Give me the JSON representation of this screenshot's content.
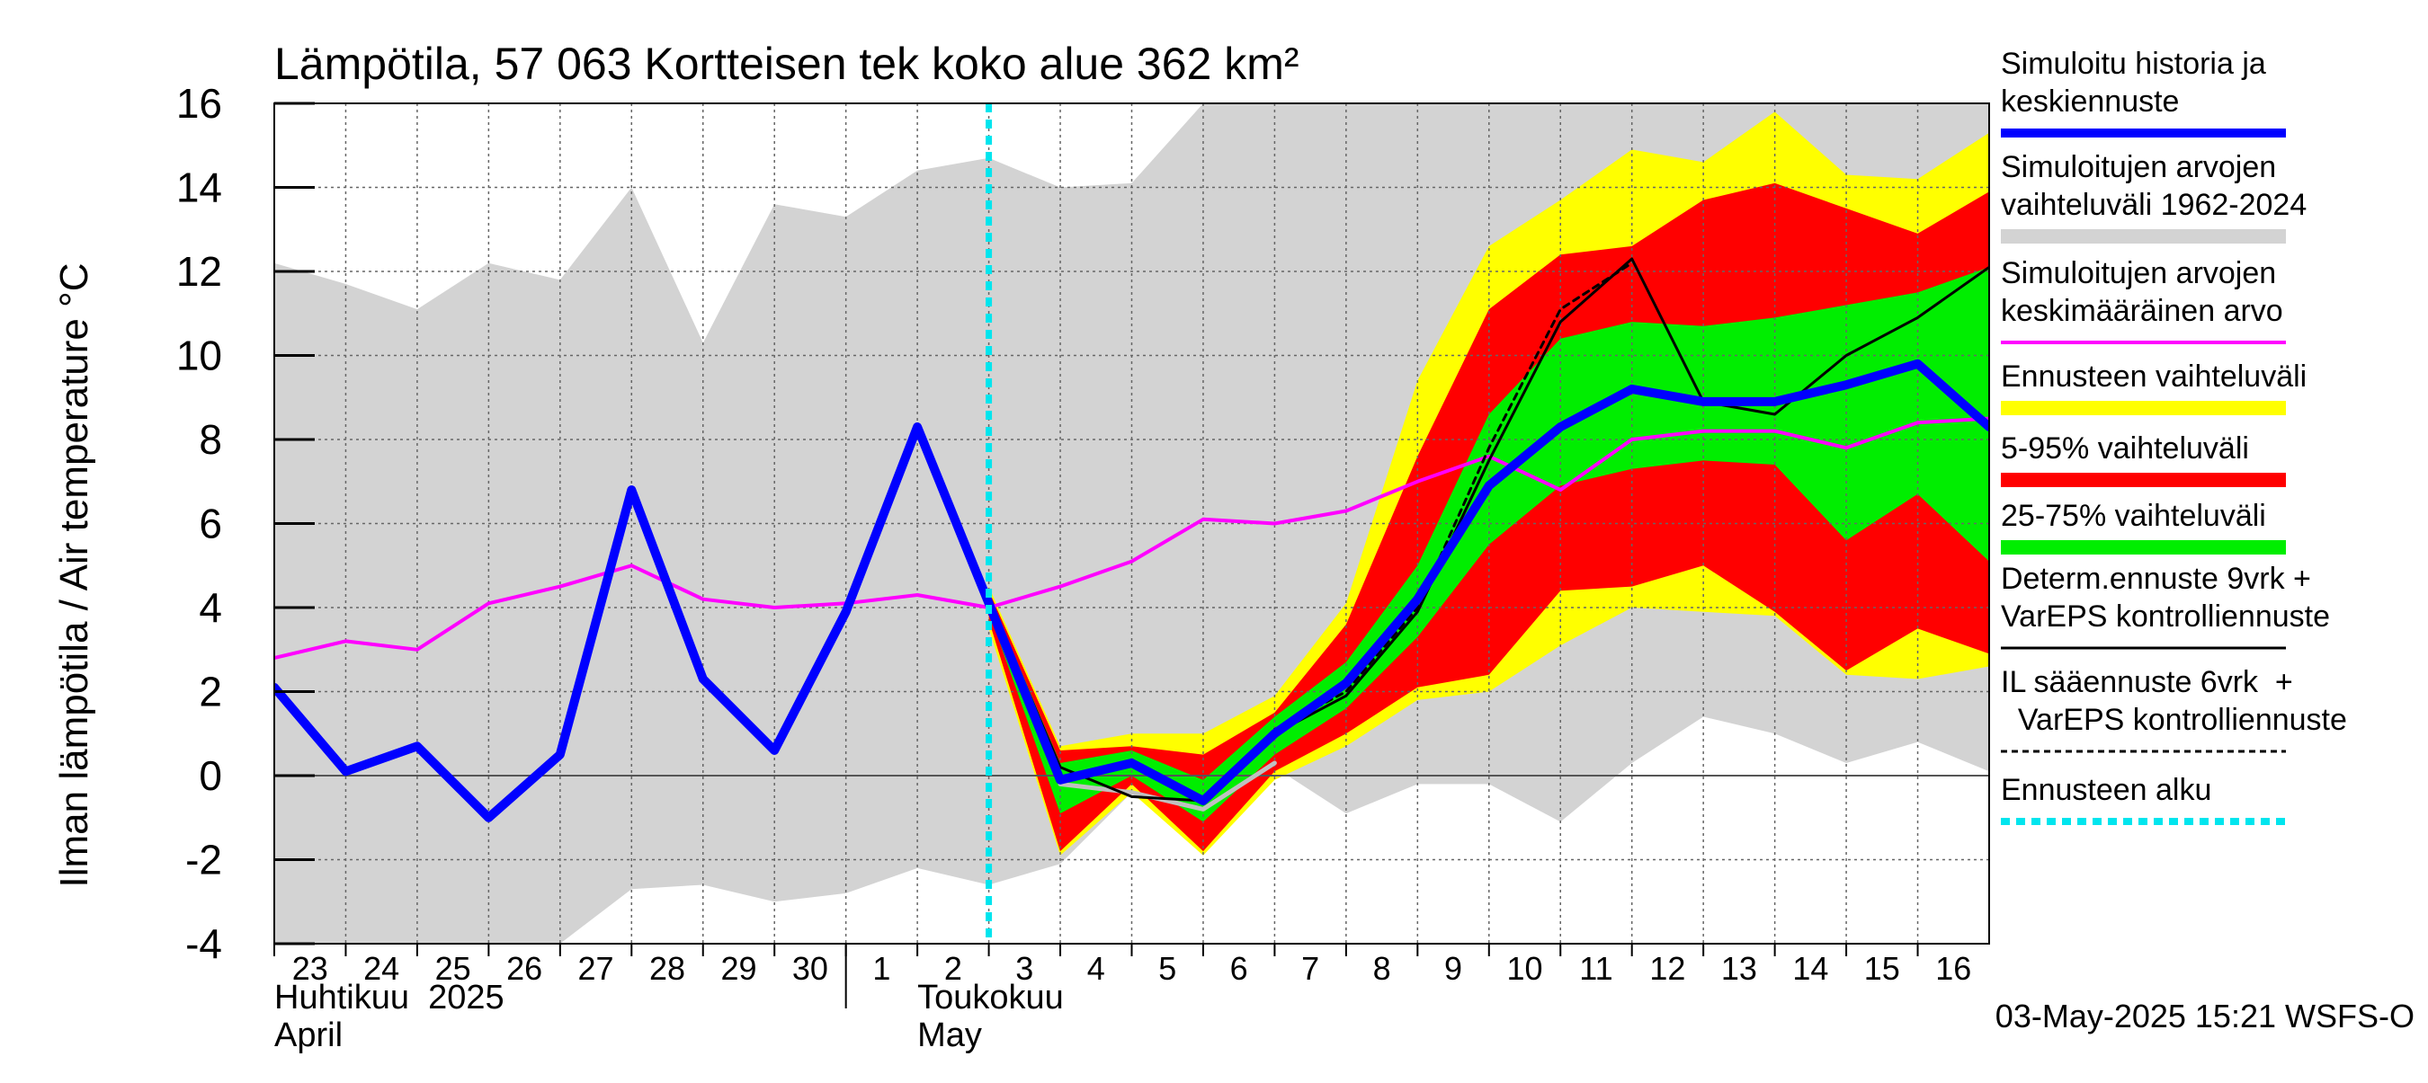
{
  "chart_data": {
    "type": "line",
    "title": "Lämpötila, 57 063 Kortteisen tek koko alue 362 km²",
    "ylabel": "Ilman lämpötila / Air temperature   °C",
    "ylim": [
      -4,
      16
    ],
    "yticks": [
      -4,
      -2,
      0,
      2,
      4,
      6,
      8,
      10,
      12,
      14,
      16
    ],
    "xlim": [
      0,
      24
    ],
    "x_tick_labels": [
      "23",
      "24",
      "25",
      "26",
      "27",
      "28",
      "29",
      "30",
      "1",
      "2",
      "3",
      "4",
      "5",
      "6",
      "7",
      "8",
      "9",
      "10",
      "11",
      "12",
      "13",
      "14",
      "15",
      "16"
    ],
    "month_labels": [
      {
        "fi": "Huhtikuu  2025",
        "en": "April"
      },
      {
        "fi": "Toukokuu",
        "en": "May"
      }
    ],
    "grid": true,
    "legend_placement": "right",
    "forecast_start_x": 10,
    "timestamp": "03-May-2025 15:21 WSFS-O",
    "series": [
      {
        "key": "range_all",
        "name": "Simuloitujen arvojen vaihteluväli 1962-2024",
        "color": "#d3d3d3",
        "x": [
          0,
          1,
          2,
          3,
          4,
          5,
          6,
          7,
          8,
          9,
          10,
          11,
          12,
          13,
          14,
          15,
          16,
          17,
          18,
          19,
          20,
          21,
          22,
          23,
          24
        ],
        "upper": [
          12.2,
          11.7,
          11.1,
          12.2,
          11.8,
          14.0,
          10.3,
          13.6,
          13.3,
          14.4,
          14.7,
          14.0,
          14.1,
          17,
          17,
          17,
          17,
          17,
          17,
          17,
          17,
          17,
          17,
          17,
          17
        ],
        "lower": [
          -4.5,
          -4.5,
          -4.5,
          -4.5,
          -4.1,
          -2.7,
          -2.6,
          -3.0,
          -2.8,
          -2.2,
          -2.6,
          -2.1,
          -0.4,
          -0.8,
          0.2,
          -0.9,
          -0.2,
          -0.2,
          -1.1,
          0.3,
          1.4,
          1.0,
          0.3,
          0.8,
          0.1
        ]
      },
      {
        "key": "range_forecast",
        "name": "Ennusteen vaihteluväli",
        "color": "#ffff00",
        "x": [
          10,
          11,
          12,
          13,
          14,
          15,
          16,
          17,
          18,
          19,
          20,
          21,
          22,
          23,
          24
        ],
        "upper": [
          4.5,
          0.7,
          1.0,
          1.0,
          1.9,
          4.1,
          9.4,
          12.6,
          13.7,
          14.9,
          14.6,
          15.8,
          14.3,
          14.2,
          15.3
        ],
        "lower": [
          3.5,
          -1.9,
          -0.4,
          -1.9,
          -0.1,
          0.7,
          1.8,
          2.0,
          3.1,
          4.0,
          3.9,
          3.8,
          2.4,
          2.3,
          2.6
        ]
      },
      {
        "key": "range_5_95",
        "name": "5-95% vaihteluväli",
        "color": "#ff0000",
        "x": [
          10,
          11,
          12,
          13,
          14,
          15,
          16,
          17,
          18,
          19,
          20,
          21,
          22,
          23,
          24
        ],
        "upper": [
          4.4,
          0.6,
          0.7,
          0.5,
          1.5,
          3.6,
          7.6,
          11.1,
          12.4,
          12.6,
          13.7,
          14.1,
          13.5,
          12.9,
          13.9
        ],
        "lower": [
          3.7,
          -1.8,
          -0.2,
          -1.8,
          0.1,
          1.0,
          2.1,
          2.4,
          4.4,
          4.5,
          5.0,
          3.9,
          2.5,
          3.5,
          2.9
        ]
      },
      {
        "key": "range_25_75",
        "name": "25-75% vaihteluväli",
        "color": "#00ee00",
        "x": [
          10,
          11,
          12,
          13,
          14,
          15,
          16,
          17,
          18,
          19,
          20,
          21,
          22,
          23,
          24
        ],
        "upper": [
          4.3,
          0.3,
          0.6,
          -0.1,
          1.4,
          2.7,
          5.0,
          8.6,
          10.4,
          10.8,
          10.7,
          10.9,
          11.2,
          11.5,
          12.1
        ],
        "lower": [
          3.9,
          -0.9,
          0.0,
          -1.1,
          0.5,
          1.6,
          3.3,
          5.5,
          6.9,
          7.3,
          7.5,
          7.4,
          5.6,
          6.7,
          5.1
        ]
      },
      {
        "key": "mean",
        "name": "Simuloitujen arvojen keskimääräinen arvo",
        "color": "#ff00ff",
        "x": [
          0,
          1,
          2,
          3,
          4,
          5,
          6,
          7,
          8,
          9,
          10,
          11,
          12,
          13,
          14,
          15,
          16,
          17,
          18,
          19,
          20,
          21,
          22,
          23,
          24
        ],
        "values": [
          2.8,
          3.2,
          3.0,
          4.1,
          4.5,
          5.0,
          4.2,
          4.0,
          4.1,
          4.3,
          4.0,
          4.5,
          5.1,
          6.1,
          6.0,
          6.3,
          7.0,
          7.6,
          6.8,
          8.0,
          8.2,
          8.2,
          7.8,
          8.4,
          8.5
        ]
      },
      {
        "key": "determ",
        "name": "Determ.ennuste 9vrk + VarEPS kontrolliennuste",
        "color": "#000000",
        "x": [
          9,
          10,
          11,
          12,
          13,
          14,
          15,
          16,
          17,
          18,
          19,
          20,
          21,
          22,
          23,
          24
        ],
        "values": [
          8.3,
          4.2,
          0.2,
          -0.5,
          -0.6,
          1.0,
          1.9,
          3.9,
          7.5,
          10.8,
          12.3,
          8.9,
          8.6,
          10.0,
          10.9,
          12.1
        ]
      },
      {
        "key": "il_forecast",
        "name": "IL sääennuste 6vrk  + VarEPS kontrolliennuste",
        "color": "#000000",
        "x": [
          14,
          15,
          16,
          17,
          18,
          19
        ],
        "values": [
          1.1,
          2.0,
          4.0,
          7.8,
          11.1,
          12.2
        ]
      },
      {
        "key": "control",
        "name": "",
        "color": "#c0c0c0",
        "x": [
          11,
          12,
          13,
          14
        ],
        "values": [
          -0.2,
          -0.4,
          -0.8,
          0.3
        ]
      },
      {
        "key": "history",
        "name": "Simuloitu historia ja keskiennuste",
        "color": "#0000ff",
        "x": [
          0,
          1,
          2,
          3,
          4,
          5,
          6,
          7,
          8,
          9,
          10,
          11,
          12,
          13,
          14,
          15,
          16,
          17,
          18,
          19,
          20,
          21,
          22,
          23,
          24
        ],
        "values": [
          2.1,
          0.1,
          0.7,
          -1.0,
          0.5,
          6.8,
          2.3,
          0.6,
          3.9,
          8.3,
          4.1,
          -0.1,
          0.3,
          -0.6,
          1.0,
          2.2,
          4.2,
          6.9,
          8.3,
          9.2,
          8.9,
          8.9,
          9.3,
          9.8,
          8.3
        ]
      }
    ],
    "legend": [
      {
        "lines": [
          "Simuloitu historia ja",
          "keskiennuste"
        ],
        "color": "#0000ff",
        "style": "thick"
      },
      {
        "lines": [
          "Simuloitujen arvojen",
          "vaihteluväli 1962-2024"
        ],
        "color": "#d3d3d3",
        "style": "band"
      },
      {
        "lines": [
          "Simuloitujen arvojen",
          "keskimääräinen arvo"
        ],
        "color": "#ff00ff",
        "style": "medium"
      },
      {
        "lines": [
          "Ennusteen vaihteluväli"
        ],
        "color": "#ffff00",
        "style": "band"
      },
      {
        "lines": [
          "5-95% vaihteluväli"
        ],
        "color": "#ff0000",
        "style": "band"
      },
      {
        "lines": [
          "25-75% vaihteluväli"
        ],
        "color": "#00ee00",
        "style": "band"
      },
      {
        "lines": [
          "Determ.ennuste 9vrk +",
          "VarEPS kontrolliennuste"
        ],
        "color": "#000000",
        "style": "thin"
      },
      {
        "lines": [
          "IL sääennuste 6vrk  +",
          "  VarEPS kontrolliennuste"
        ],
        "color": "#000000",
        "style": "dashed"
      },
      {
        "lines": [
          "Ennusteen alku"
        ],
        "color": "#00e5ee",
        "style": "dotted"
      }
    ]
  }
}
